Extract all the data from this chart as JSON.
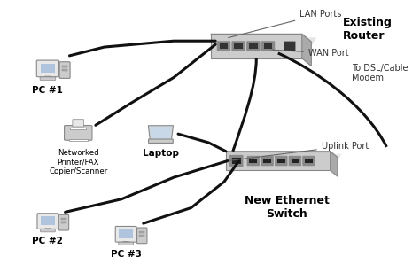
{
  "bg_color": "#ffffff",
  "title": "",
  "labels": {
    "pc1": "PC #1",
    "printer": "Networked\nPrinter/FAX\nCopier/Scanner",
    "laptop": "Laptop",
    "pc2": "PC #2",
    "pc3": "PC #3",
    "router_title": "Existing\nRouter",
    "lan_ports": "LAN Ports",
    "wan_port": "WAN Port",
    "dsl": "To DSL/Cable\nModem",
    "switch_title": "New Ethernet\nSwitch",
    "uplink": "Uplink Port"
  },
  "colors": {
    "device_fill": "#d8d8d8",
    "device_edge": "#888888",
    "cable": "#111111",
    "port_fill": "#222222",
    "port_border": "#555555",
    "text_main": "#000000",
    "text_label": "#333333",
    "shadow": "#bbbbbb",
    "router_body": "#cccccc",
    "router_top": "#e8e8e8",
    "router_side": "#aaaaaa"
  }
}
